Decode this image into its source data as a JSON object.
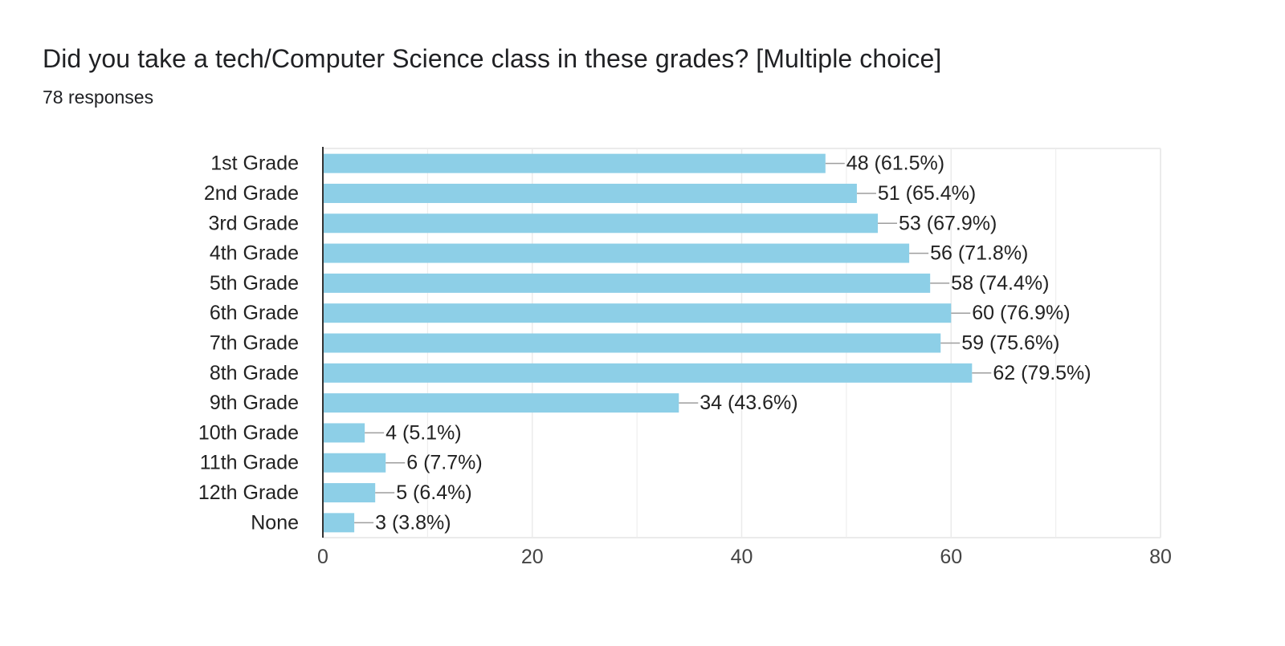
{
  "card": {
    "title": "Did you take a tech/Computer Science class in these grades? [Multiple choice]",
    "responses": "78 responses"
  },
  "colors": {
    "bar": "#8dcfe7",
    "grid": "#ebebeb",
    "axis": "#333333",
    "leader": "#9e9e9e",
    "text": "#222222",
    "tick": "#444444"
  },
  "chart_data": {
    "type": "bar",
    "orientation": "horizontal",
    "categories": [
      "1st Grade",
      "2nd Grade",
      "3rd Grade",
      "4th Grade",
      "5th Grade",
      "6th Grade",
      "7th Grade",
      "8th Grade",
      "9th Grade",
      "10th Grade",
      "11th Grade",
      "12th Grade",
      "None"
    ],
    "values": [
      48,
      51,
      53,
      56,
      58,
      60,
      59,
      62,
      34,
      4,
      6,
      5,
      3
    ],
    "labels": [
      "48 (61.5%)",
      "51 (65.4%)",
      "53 (67.9%)",
      "56 (71.8%)",
      "58 (74.4%)",
      "60 (76.9%)",
      "59 (75.6%)",
      "62 (79.5%)",
      "34 (43.6%)",
      "4 (5.1%)",
      "6 (7.7%)",
      "5 (6.4%)",
      "3 (3.8%)"
    ],
    "xlim": [
      0,
      80
    ],
    "xticks": [
      0,
      20,
      40,
      60,
      80
    ],
    "grid": true,
    "xlabel": "",
    "ylabel": ""
  }
}
